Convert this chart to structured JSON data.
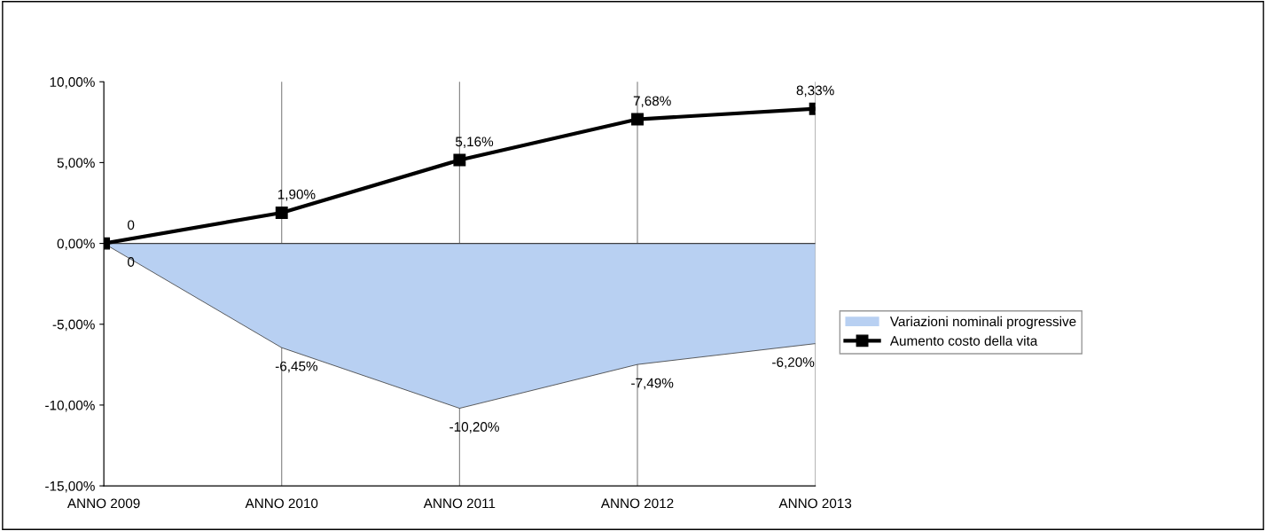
{
  "chart_data": {
    "type": "line",
    "categories": [
      "ANNO 2009",
      "ANNO 2010",
      "ANNO 2011",
      "ANNO 2012",
      "ANNO 2013"
    ],
    "series": [
      {
        "name": "Variazioni nominali progressive",
        "type": "area",
        "color": "#b8d0f2",
        "values": [
          0,
          -6.45,
          -10.2,
          -7.49,
          -6.2
        ],
        "value_labels": [
          "0",
          "-6,45%",
          "-10,20%",
          "-7,49%",
          "-6,20%"
        ]
      },
      {
        "name": "Aumento costo della vita",
        "color": "#000000",
        "marker": "square",
        "values": [
          0,
          1.9,
          5.16,
          7.68,
          8.33
        ],
        "value_labels": [
          "0",
          "1,90%",
          "5,16%",
          "7,68%",
          "8,33%"
        ]
      }
    ],
    "ylim": [
      -15,
      10
    ],
    "yticks": [
      {
        "value": -15,
        "label": "-15,00%"
      },
      {
        "value": -10,
        "label": "-10,00%"
      },
      {
        "value": -5,
        "label": "-5,00%"
      },
      {
        "value": 0,
        "label": "0,00%"
      },
      {
        "value": 5,
        "label": "5,00%"
      },
      {
        "value": 10,
        "label": "10,00%"
      }
    ],
    "grid": "x",
    "legend": "right"
  }
}
